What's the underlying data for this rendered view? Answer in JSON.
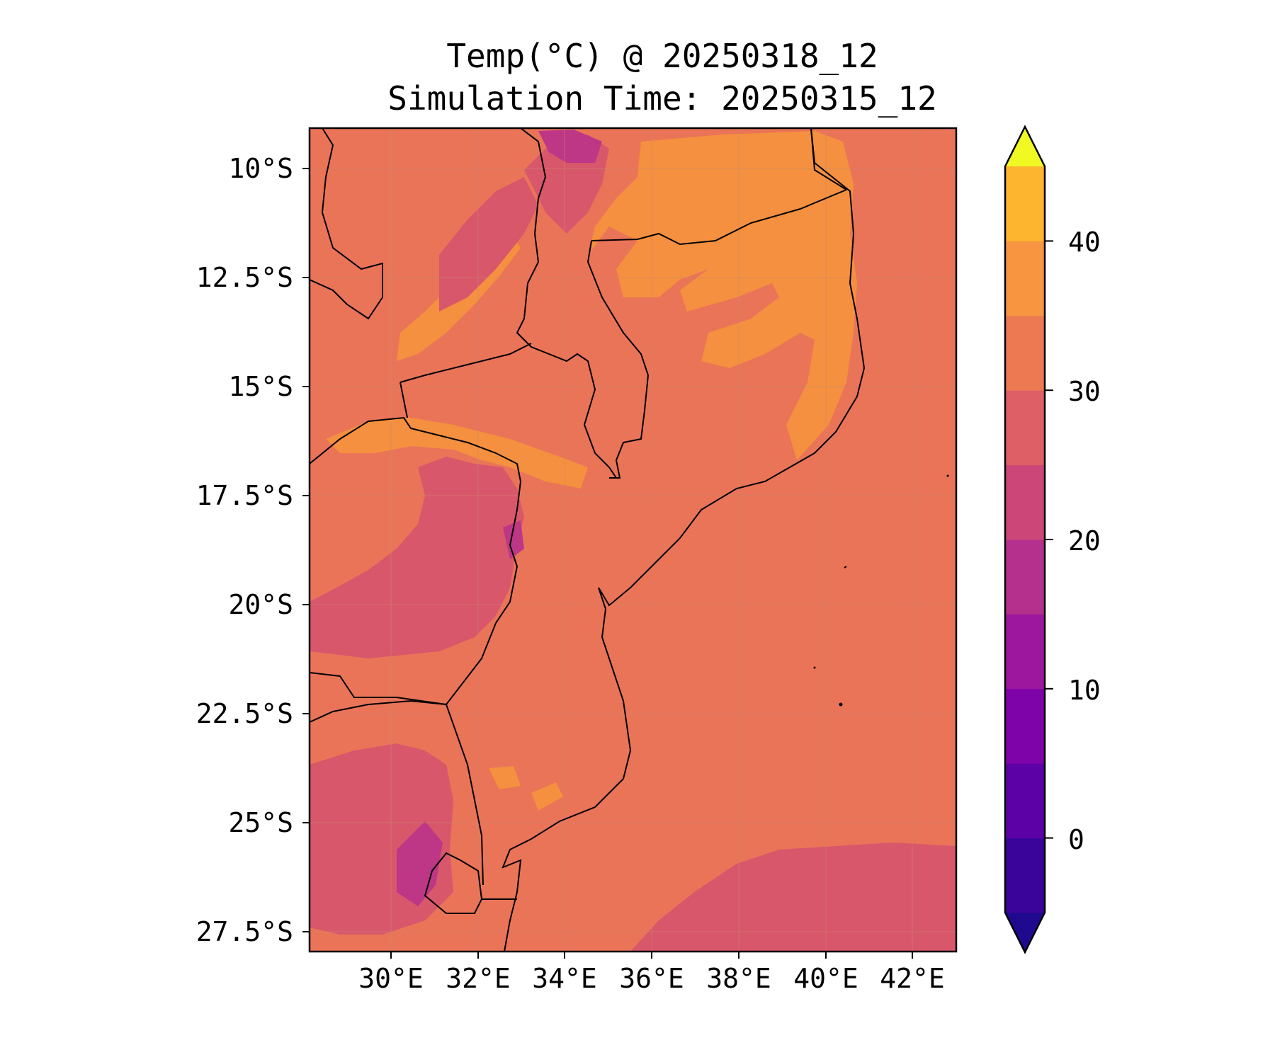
{
  "title": {
    "line1": "Temp(°C) @ 20250318_12",
    "line2": "Simulation Time: 20250315_12"
  },
  "map": {
    "region": "Mozambique and surroundings",
    "lat_ticks": [
      "10°S",
      "12.5°S",
      "15°S",
      "17.5°S",
      "20°S",
      "22.5°S",
      "25°S",
      "27.5°S"
    ],
    "lon_ticks": [
      "30°E",
      "32°E",
      "34°E",
      "36°E",
      "38°E",
      "40°E",
      "42°E"
    ],
    "lat_range": [
      -28.0,
      -9.1
    ],
    "lon_range": [
      28.0,
      42.9
    ],
    "gridlines": true
  },
  "colorbar": {
    "ticks": [
      "0",
      "10",
      "20",
      "30",
      "40"
    ],
    "levels": [
      -5,
      0,
      5,
      10,
      15,
      20,
      25,
      30,
      35,
      40,
      45
    ],
    "colors": [
      "#1f0a8f",
      "#3a049a",
      "#5c01a6",
      "#7e03a8",
      "#9c179e",
      "#b52f8c",
      "#cc4778",
      "#de5f65",
      "#ed7953",
      "#f89540",
      "#fdb42f",
      "#f0f921"
    ],
    "extend": "both"
  },
  "colors": {
    "dominant_25_30": "#ed7953",
    "band_20_25": "#d8576b",
    "band_30_35": "#f89540",
    "band_15_20": "#bd3786"
  }
}
